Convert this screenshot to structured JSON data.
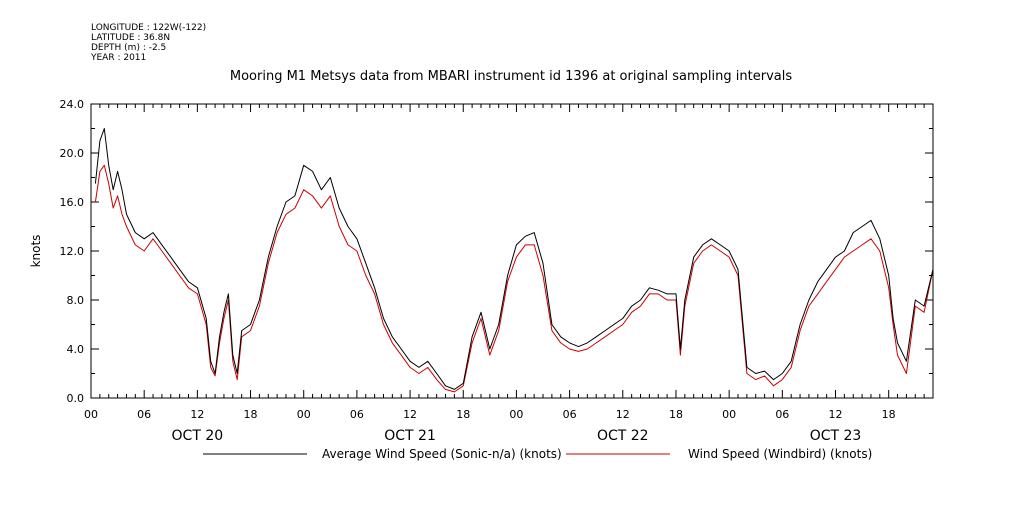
{
  "metadata": [
    "LONGITUDE : 122W(-122)",
    "LATITUDE : 36.8N",
    "DEPTH (m) : -2.5",
    "YEAR : 2011"
  ],
  "chart_data": {
    "type": "line",
    "title": "Mooring M1 Metsys data from MBARI instrument id 1396 at original sampling intervals",
    "xlabel": "",
    "ylabel": "knots",
    "ylim": [
      0,
      24
    ],
    "yticks": [
      0,
      4,
      8,
      12,
      16,
      20,
      24
    ],
    "ytick_labels": [
      "0.0",
      "4.0",
      "8.0",
      "12.0",
      "16.0",
      "20.0",
      "24.0"
    ],
    "xlim_hours": [
      0,
      95
    ],
    "xticks": [
      {
        "hour": 0,
        "label": "00"
      },
      {
        "hour": 6,
        "label": "06"
      },
      {
        "hour": 12,
        "label": "12"
      },
      {
        "hour": 18,
        "label": "18"
      },
      {
        "hour": 24,
        "label": "00"
      },
      {
        "hour": 30,
        "label": "06"
      },
      {
        "hour": 36,
        "label": "12"
      },
      {
        "hour": 42,
        "label": "18"
      },
      {
        "hour": 48,
        "label": "00"
      },
      {
        "hour": 54,
        "label": "06"
      },
      {
        "hour": 60,
        "label": "12"
      },
      {
        "hour": 66,
        "label": "18"
      },
      {
        "hour": 72,
        "label": "00"
      },
      {
        "hour": 78,
        "label": "06"
      },
      {
        "hour": 84,
        "label": "12"
      },
      {
        "hour": 90,
        "label": "18"
      }
    ],
    "date_labels": [
      {
        "hour": 12,
        "label": "OCT 20"
      },
      {
        "hour": 36,
        "label": "OCT 21"
      },
      {
        "hour": 60,
        "label": "OCT 22"
      },
      {
        "hour": 84,
        "label": "OCT 23"
      }
    ],
    "grid": false,
    "legend_position": "bottom",
    "series": [
      {
        "name": "Average Wind Speed (Sonic-n/a) (knots)",
        "color": "#000000",
        "x": [
          0.5,
          1,
          1.5,
          2,
          2.5,
          3,
          3.5,
          4,
          5,
          6,
          7,
          8,
          9,
          10,
          11,
          12,
          13,
          13.5,
          14,
          14.5,
          15,
          15.5,
          16,
          16.5,
          17,
          18,
          19,
          20,
          21,
          22,
          23,
          24,
          25,
          26,
          27,
          28,
          29,
          30,
          31,
          32,
          33,
          34,
          35,
          36,
          37,
          38,
          39,
          40,
          41,
          42,
          43,
          44,
          45,
          46,
          47,
          48,
          49,
          50,
          51,
          52,
          53,
          54,
          55,
          56,
          57,
          58,
          59,
          60,
          61,
          62,
          63,
          64,
          65,
          66,
          66.5,
          67,
          68,
          69,
          70,
          71,
          72,
          73,
          74,
          75,
          76,
          77,
          78,
          79,
          80,
          81,
          82,
          83,
          84,
          85,
          86,
          87,
          88,
          89,
          90,
          90.5,
          91,
          92,
          93,
          94,
          95
        ],
        "y": [
          17.5,
          21,
          22,
          19,
          17,
          18.5,
          17,
          15,
          13.5,
          13,
          13.5,
          12.5,
          11.5,
          10.5,
          9.5,
          9,
          6.5,
          3,
          2,
          5,
          7,
          8.5,
          3.5,
          2,
          5.5,
          6,
          8,
          11.5,
          14,
          16,
          16.5,
          19,
          18.5,
          17,
          18,
          15.5,
          14,
          13,
          11,
          9,
          6.5,
          5,
          4,
          3,
          2.5,
          3,
          2,
          1,
          0.7,
          1.2,
          5,
          7,
          4,
          6,
          10,
          12.5,
          13.2,
          13.5,
          11,
          6,
          5,
          4.5,
          4.2,
          4.5,
          5,
          5.5,
          6,
          6.5,
          7.5,
          8,
          9,
          8.8,
          8.5,
          8.5,
          4,
          8,
          11.5,
          12.5,
          13,
          12.5,
          12,
          10.5,
          2.5,
          2,
          2.2,
          1.5,
          2,
          3,
          6,
          8,
          9.5,
          10.5,
          11.5,
          12,
          13.5,
          14,
          14.5,
          13,
          10,
          6.5,
          4.5,
          3,
          8,
          7.5,
          10.5
        ]
      },
      {
        "name": "Wind Speed (Windbird) (knots)",
        "color": "#cc0000",
        "x": [
          0.5,
          1,
          1.5,
          2,
          2.5,
          3,
          3.5,
          4,
          5,
          6,
          7,
          8,
          9,
          10,
          11,
          12,
          13,
          13.5,
          14,
          14.5,
          15,
          15.5,
          16,
          16.5,
          17,
          18,
          19,
          20,
          21,
          22,
          23,
          24,
          25,
          26,
          27,
          28,
          29,
          30,
          31,
          32,
          33,
          34,
          35,
          36,
          37,
          38,
          39,
          40,
          41,
          42,
          43,
          44,
          45,
          46,
          47,
          48,
          49,
          50,
          51,
          52,
          53,
          54,
          55,
          56,
          57,
          58,
          59,
          60,
          61,
          62,
          63,
          64,
          65,
          66,
          66.5,
          67,
          68,
          69,
          70,
          71,
          72,
          73,
          74,
          75,
          76,
          77,
          78,
          79,
          80,
          81,
          82,
          83,
          84,
          85,
          86,
          87,
          88,
          89,
          90,
          90.5,
          91,
          92,
          93,
          94,
          95
        ],
        "y": [
          16,
          18.5,
          19,
          17.5,
          15.5,
          16.5,
          15,
          14,
          12.5,
          12,
          13,
          12,
          11,
          10,
          9,
          8.5,
          6,
          2.5,
          1.8,
          4.5,
          6.5,
          8,
          3,
          1.5,
          5,
          5.5,
          7.5,
          11,
          13.5,
          15,
          15.5,
          17,
          16.5,
          15.5,
          16.5,
          14,
          12.5,
          12,
          10,
          8.5,
          6,
          4.5,
          3.5,
          2.5,
          2,
          2.5,
          1.5,
          0.7,
          0.5,
          1,
          4.5,
          6.5,
          3.5,
          5.5,
          9.5,
          11.5,
          12.5,
          12.5,
          10,
          5.5,
          4.5,
          4,
          3.8,
          4,
          4.5,
          5,
          5.5,
          6,
          7,
          7.5,
          8.5,
          8.5,
          8,
          8,
          3.5,
          7.5,
          11,
          12,
          12.5,
          12,
          11.5,
          10,
          2,
          1.5,
          1.8,
          1,
          1.5,
          2.5,
          5.5,
          7.5,
          8.5,
          9.5,
          10.5,
          11.5,
          12,
          12.5,
          13,
          12,
          9,
          6,
          3.5,
          2,
          7.5,
          7,
          10.5
        ]
      }
    ]
  }
}
